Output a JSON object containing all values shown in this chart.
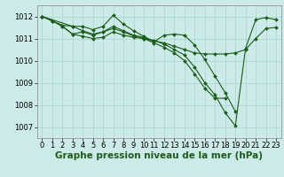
{
  "background_color": "#cceae7",
  "grid_color": "#aad4d0",
  "line_color": "#1a5c1a",
  "marker_color": "#1a5c1a",
  "xlabel": "Graphe pression niveau de la mer (hPa)",
  "xlabel_fontsize": 7.5,
  "tick_fontsize": 6,
  "ylim": [
    1006.5,
    1012.5
  ],
  "xlim": [
    -0.5,
    23.5
  ],
  "yticks": [
    1007,
    1008,
    1009,
    1010,
    1011,
    1012
  ],
  "xtick_labels": [
    "0",
    "1",
    "2",
    "3",
    "4",
    "5",
    "6",
    "7",
    "8",
    "9",
    "10",
    "11",
    "12",
    "13",
    "14",
    "15",
    "16",
    "17",
    "18",
    "19",
    "20",
    "21",
    "22",
    "23"
  ],
  "series": [
    {
      "x": [
        0,
        1,
        2,
        3,
        4,
        5,
        6,
        7,
        8,
        9,
        10,
        11,
        12,
        13,
        14,
        15,
        16,
        17,
        18,
        19,
        20,
        21,
        22,
        23
      ],
      "y": [
        1012.0,
        1011.8,
        1011.55,
        1011.2,
        1011.1,
        1011.0,
        1011.05,
        1011.3,
        1011.15,
        1011.05,
        1011.0,
        1010.9,
        1010.8,
        1010.65,
        1010.5,
        1010.35,
        1010.3,
        1010.3,
        1010.3,
        1010.35,
        1010.5,
        1011.0,
        1011.45,
        1011.5
      ],
      "markersize": 2.0,
      "linewidth": 0.8
    },
    {
      "x": [
        0,
        1,
        2,
        3,
        4,
        5,
        6,
        7,
        8,
        9,
        10,
        11,
        12,
        13,
        14,
        15,
        16,
        17,
        18,
        19,
        20,
        21,
        22,
        23
      ],
      "y": [
        1012.0,
        1011.8,
        1011.6,
        1011.55,
        1011.55,
        1011.4,
        1011.55,
        1012.05,
        1011.65,
        1011.35,
        1011.1,
        1010.85,
        1011.15,
        1011.2,
        1011.15,
        1010.7,
        1010.05,
        1009.3,
        1008.55,
        1007.7,
        null,
        null,
        null,
        null
      ],
      "markersize": 2.0,
      "linewidth": 0.8
    },
    {
      "x": [
        0,
        1,
        2,
        3,
        4,
        5,
        6,
        7,
        8,
        9,
        10,
        11,
        12,
        13,
        14,
        15,
        16,
        17,
        18,
        19,
        20,
        21,
        22,
        23
      ],
      "y": [
        1012.0,
        1011.8,
        1011.55,
        1011.2,
        1011.3,
        1011.15,
        1011.3,
        1011.45,
        1011.3,
        1011.1,
        1011.0,
        1010.8,
        1010.6,
        1010.35,
        1010.0,
        1009.4,
        1008.75,
        1008.3,
        1008.3,
        null,
        null,
        null,
        null,
        null
      ],
      "markersize": 2.0,
      "linewidth": 0.8
    },
    {
      "x": [
        0,
        3,
        4,
        5,
        6,
        7,
        8,
        9,
        10,
        11,
        12,
        13,
        14,
        15,
        16,
        17,
        18,
        19,
        20,
        21,
        22,
        23
      ],
      "y": [
        1012.0,
        1011.55,
        1011.35,
        1011.2,
        1011.3,
        1011.55,
        1011.35,
        1011.15,
        1011.05,
        1010.9,
        1010.75,
        1010.5,
        1010.25,
        1009.7,
        1009.0,
        1008.45,
        1007.65,
        1007.05,
        1010.55,
        1011.85,
        1011.95,
        1011.85
      ],
      "markersize": 2.0,
      "linewidth": 0.8
    }
  ]
}
